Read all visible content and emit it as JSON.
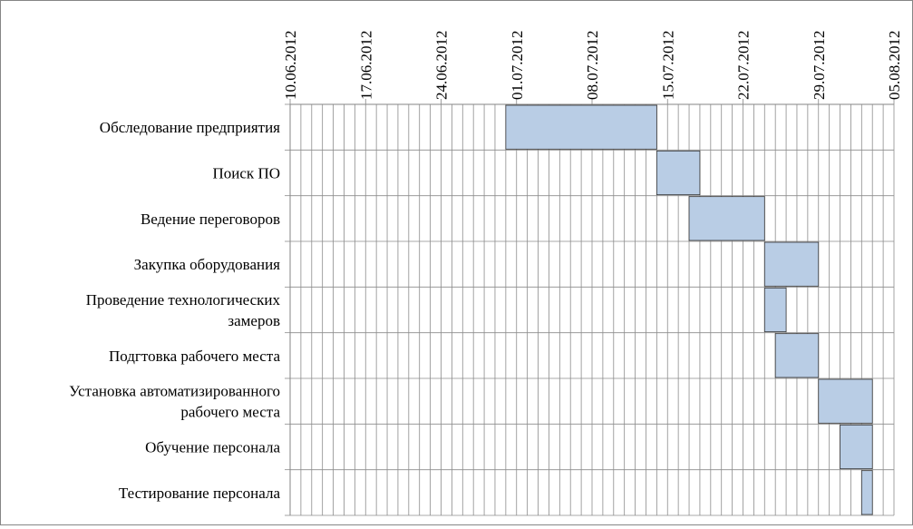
{
  "chart_data": {
    "type": "gantt",
    "title": "",
    "xlabel": "",
    "ylabel": "",
    "x_axis": {
      "kind": "date",
      "min": "2012-06-10",
      "max": "2012-08-05",
      "tick_labels": [
        "10.06.2012",
        "17.06.2012",
        "24.06.2012",
        "01.07.2012",
        "08.07.2012",
        "15.07.2012",
        "22.07.2012",
        "29.07.2012",
        "05.08.2012"
      ],
      "position": "top",
      "minor_grid": "daily"
    },
    "grid": true,
    "legend": "none",
    "colors": {
      "bar_fill": "#b9cde5",
      "bar_stroke": "#333333",
      "grid": "#8c8c8c"
    },
    "tasks": [
      {
        "name": [
          "Обследование предприятия"
        ],
        "start": "2012-06-30",
        "end": "2012-07-14"
      },
      {
        "name": [
          "Поиск ПО"
        ],
        "start": "2012-07-14",
        "end": "2012-07-18"
      },
      {
        "name": [
          "Ведение переговоров"
        ],
        "start": "2012-07-17",
        "end": "2012-07-24"
      },
      {
        "name": [
          "Закупка оборудования"
        ],
        "start": "2012-07-24",
        "end": "2012-07-29"
      },
      {
        "name": [
          "Проведение технологических",
          "замеров"
        ],
        "start": "2012-07-24",
        "end": "2012-07-26"
      },
      {
        "name": [
          "Подгтовка рабочего места"
        ],
        "start": "2012-07-25",
        "end": "2012-07-29"
      },
      {
        "name": [
          "Установка автоматизированного",
          "рабочего места"
        ],
        "start": "2012-07-29",
        "end": "2012-08-03"
      },
      {
        "name": [
          "Обучение персонала"
        ],
        "start": "2012-07-31",
        "end": "2012-08-03"
      },
      {
        "name": [
          "Тестирование персонала"
        ],
        "start": "2012-08-02",
        "end": "2012-08-03"
      }
    ]
  }
}
